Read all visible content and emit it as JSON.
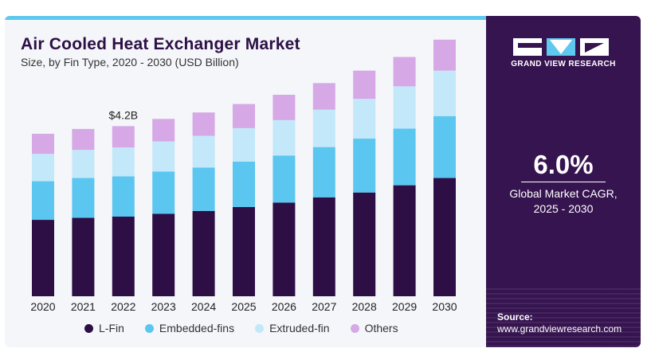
{
  "header": {
    "title": "Air Cooled Heat Exchanger Market",
    "subtitle": "Size, by Fin Type, 2020 - 2030 (USD Billion)"
  },
  "sidebar": {
    "brand": "GRAND VIEW RESEARCH",
    "cagr_value": "6.0%",
    "cagr_label_line1": "Global Market CAGR,",
    "cagr_label_line2": "2025 - 2030",
    "source_title": "Source:",
    "source_url": "www.grandviewresearch.com"
  },
  "colors": {
    "l_fin": "#2d0f45",
    "embedded": "#5bc6f0",
    "extruded": "#c3e8f9",
    "others": "#d6a8e6",
    "accent": "#5ec8ee",
    "sidebar_bg": "#361450"
  },
  "chart_data": {
    "type": "bar",
    "stacked": true,
    "categories": [
      "2020",
      "2021",
      "2022",
      "2023",
      "2024",
      "2025",
      "2026",
      "2027",
      "2028",
      "2029",
      "2030"
    ],
    "series": [
      {
        "name": "L-Fin",
        "values": [
          1.9,
          1.95,
          1.98,
          2.05,
          2.12,
          2.22,
          2.33,
          2.46,
          2.58,
          2.76,
          2.94
        ]
      },
      {
        "name": "Embedded-fins",
        "values": [
          0.96,
          0.99,
          1.0,
          1.05,
          1.08,
          1.13,
          1.17,
          1.25,
          1.34,
          1.41,
          1.54
        ]
      },
      {
        "name": "Extruded-fin",
        "values": [
          0.68,
          0.7,
          0.72,
          0.75,
          0.79,
          0.83,
          0.88,
          0.93,
          0.99,
          1.05,
          1.13
        ]
      },
      {
        "name": "Others",
        "values": [
          0.5,
          0.52,
          0.53,
          0.56,
          0.58,
          0.6,
          0.63,
          0.66,
          0.7,
          0.73,
          0.77
        ]
      }
    ],
    "annotations": [
      {
        "category": "2022",
        "label": "$4.2B"
      }
    ],
    "legend_position": "bottom",
    "grid": false
  }
}
